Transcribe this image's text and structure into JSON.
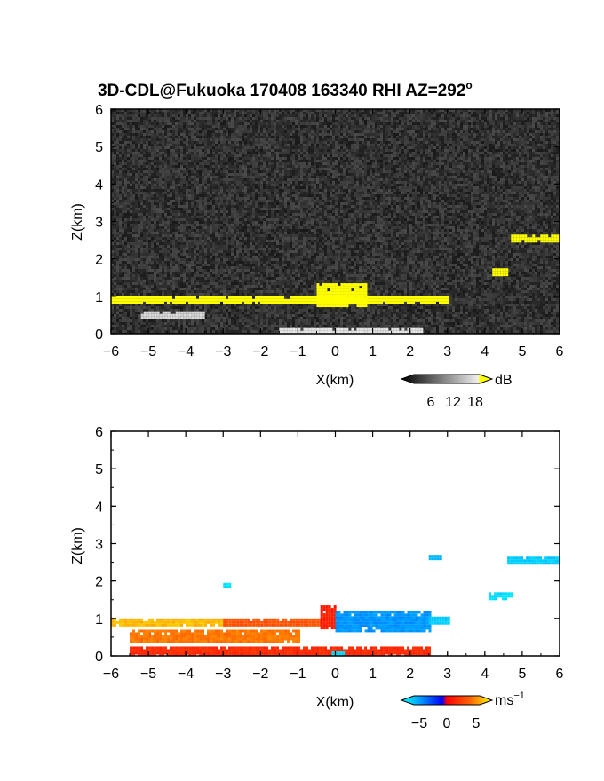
{
  "title": "3D-CDL@Fukuoka 170408 163340 RHI AZ=292",
  "title_degree": "o",
  "chart_data": [
    {
      "type": "heatmap",
      "panel": "reflectivity",
      "xlabel": "X(km)",
      "ylabel": "Z(km)",
      "xlim": [
        -6,
        6
      ],
      "ylim": [
        0,
        6
      ],
      "xticks": [
        "-6",
        "-5",
        "-4",
        "-3",
        "-2",
        "-1",
        "0",
        "1",
        "2",
        "3",
        "4",
        "5",
        "6"
      ],
      "yticks": [
        "0",
        "1",
        "2",
        "3",
        "4",
        "5",
        "6"
      ],
      "colorbar": {
        "unit": "dB",
        "ticks": [
          "6",
          "12",
          "18"
        ],
        "range": [
          0,
          21
        ]
      },
      "background": "noise (dark gray)",
      "features": [
        {
          "name": "layer",
          "x": [
            -6.0,
            3.0
          ],
          "z": [
            0.85,
            1.0
          ],
          "value": 19
        },
        {
          "name": "bump",
          "x": [
            -0.5,
            0.8
          ],
          "z": [
            0.75,
            1.35
          ],
          "value": 20
        },
        {
          "name": "lower-streak",
          "x": [
            -5.2,
            -3.5
          ],
          "z": [
            0.4,
            0.6
          ],
          "value": 16
        },
        {
          "name": "near-ground",
          "x": [
            -1.5,
            2.3
          ],
          "z": [
            0.0,
            0.15
          ],
          "value": 17
        },
        {
          "name": "patch",
          "x": [
            4.2,
            4.6
          ],
          "z": [
            1.6,
            1.75
          ],
          "value": 19
        },
        {
          "name": "upper-layer",
          "x": [
            4.7,
            6.0
          ],
          "z": [
            2.5,
            2.65
          ],
          "value": 19
        }
      ]
    },
    {
      "type": "heatmap",
      "panel": "velocity",
      "xlabel": "X(km)",
      "ylabel": "Z(km)",
      "xlim": [
        -6,
        6
      ],
      "ylim": [
        0,
        6
      ],
      "xticks": [
        "-6",
        "-5",
        "-4",
        "-3",
        "-2",
        "-1",
        "0",
        "1",
        "2",
        "3",
        "4",
        "5",
        "6"
      ],
      "yticks": [
        "0",
        "1",
        "2",
        "3",
        "4",
        "5",
        "6"
      ],
      "colorbar": {
        "unit": "ms",
        "unit_exponent": "−1",
        "ticks": [
          "−5",
          "0",
          "5"
        ],
        "range": [
          -7,
          7
        ]
      },
      "features": [
        {
          "name": "layer-west",
          "x": [
            -6.0,
            -3.0
          ],
          "z": [
            0.85,
            1.0
          ],
          "value": 5.5
        },
        {
          "name": "layer-mid",
          "x": [
            -3.0,
            -0.4
          ],
          "z": [
            0.8,
            1.0
          ],
          "value": 3
        },
        {
          "name": "bump-red",
          "x": [
            -0.4,
            0.0
          ],
          "z": [
            0.75,
            1.35
          ],
          "value": 1
        },
        {
          "name": "layer-east",
          "x": [
            0.0,
            2.5
          ],
          "z": [
            0.7,
            1.2
          ],
          "value": -4
        },
        {
          "name": "layer-east-tail",
          "x": [
            2.5,
            3.0
          ],
          "z": [
            0.85,
            1.05
          ],
          "value": -5.5
        },
        {
          "name": "lower-streak",
          "x": [
            -5.5,
            -1.0
          ],
          "z": [
            0.4,
            0.7
          ],
          "value": 4
        },
        {
          "name": "near-ground",
          "x": [
            -5.5,
            2.5
          ],
          "z": [
            0.0,
            0.25
          ],
          "value": 1.5
        },
        {
          "name": "ground-cyan",
          "x": [
            -0.1,
            0.2
          ],
          "z": [
            0.0,
            0.12
          ],
          "value": -6
        },
        {
          "name": "speck",
          "x": [
            -3.0,
            -2.8
          ],
          "z": [
            1.85,
            1.95
          ],
          "value": -6
        },
        {
          "name": "cloud-pair",
          "x": [
            2.5,
            2.8
          ],
          "z": [
            2.6,
            2.7
          ],
          "value": -5
        },
        {
          "name": "patch",
          "x": [
            4.1,
            4.7
          ],
          "z": [
            1.55,
            1.7
          ],
          "value": -6
        },
        {
          "name": "upper-layer",
          "x": [
            4.6,
            6.0
          ],
          "z": [
            2.45,
            2.65
          ],
          "value": -5.5
        }
      ]
    }
  ]
}
